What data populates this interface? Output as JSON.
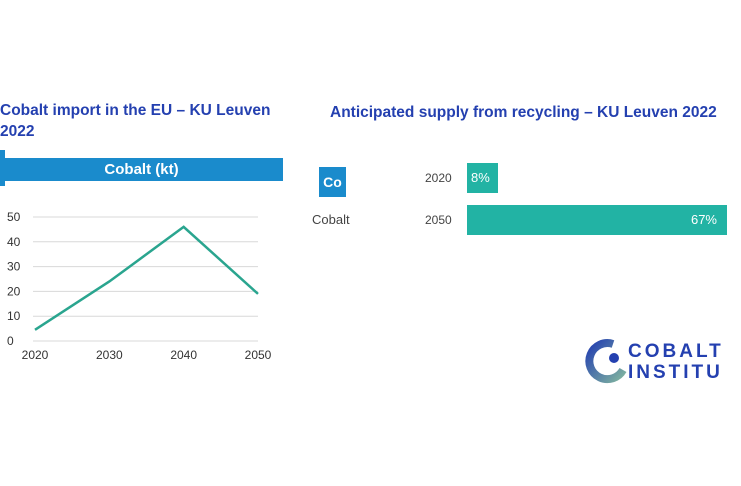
{
  "chart_data": [
    {
      "type": "line",
      "title": "Cobalt import in the EU – KU Leuven 2022",
      "header": "Cobalt (kt)",
      "x": [
        2020,
        2030,
        2040,
        2050
      ],
      "values": [
        4.5,
        24,
        46,
        19
      ],
      "xticks": [
        "2020",
        "2030",
        "2040",
        "2050"
      ],
      "yticks": [
        "0",
        "10",
        "20",
        "30",
        "40",
        "50"
      ],
      "ylim": [
        0,
        50
      ],
      "grid": true,
      "color": "#2aa58f"
    },
    {
      "type": "bar",
      "title": "Anticipated supply from recycling – KU Leuven 2022",
      "element_symbol": "Co",
      "element_name": "Cobalt",
      "categories": [
        "2020",
        "2050"
      ],
      "values": [
        8,
        67
      ],
      "labels": [
        "8%",
        "67%"
      ],
      "unit": "%",
      "color": "#22b3a4"
    }
  ],
  "logo": {
    "line1": "COBALT",
    "line2": "INSTITU"
  }
}
